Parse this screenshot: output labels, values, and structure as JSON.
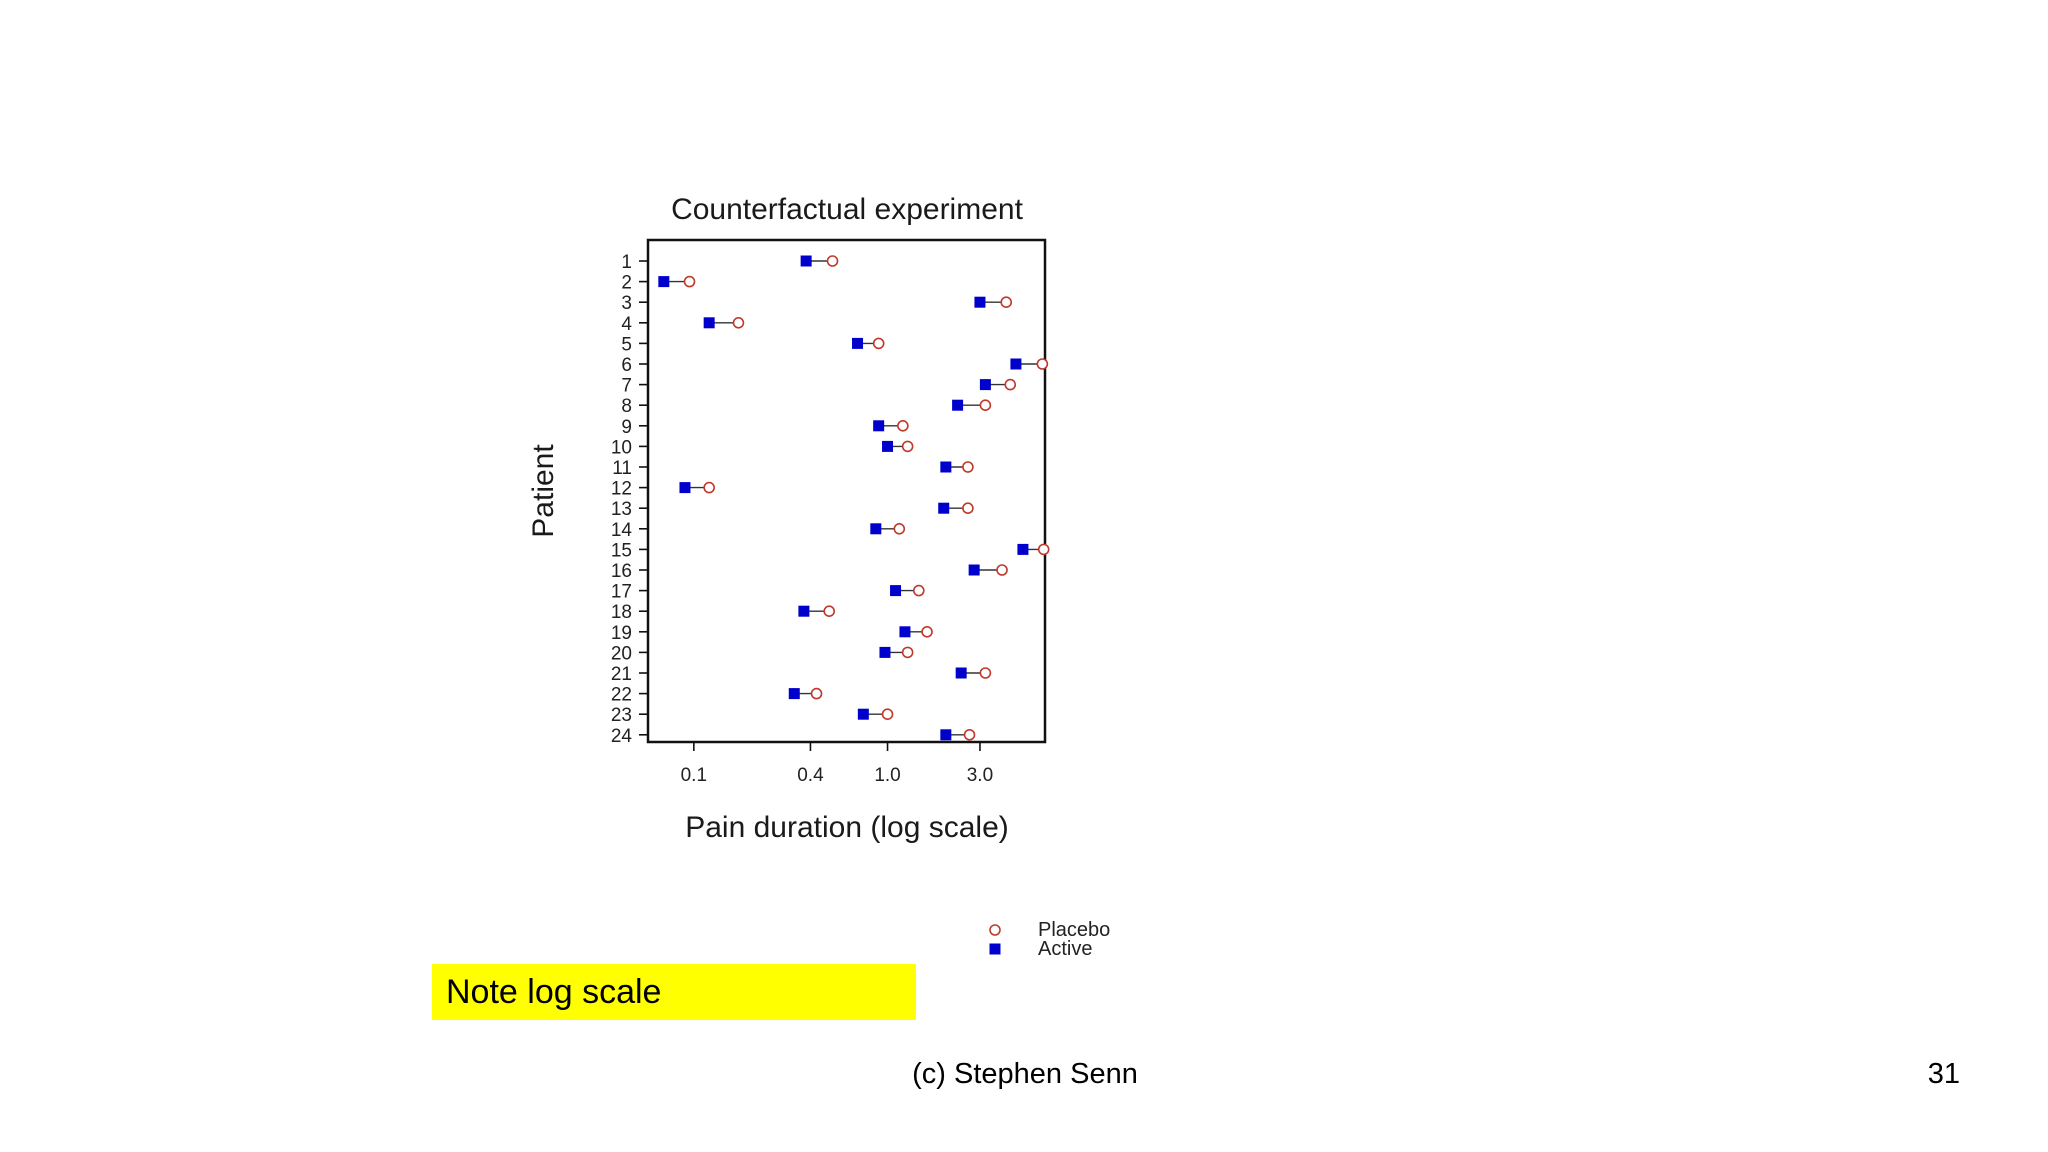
{
  "chart_data": {
    "type": "scatter",
    "title": "Counterfactual experiment",
    "xlabel": "Pain duration (log scale)",
    "ylabel": "Patient",
    "x_scale": "log",
    "xlim": [
      0.058,
      6.5
    ],
    "x_ticks": [
      0.1,
      0.4,
      1.0,
      3.0
    ],
    "x_tick_labels": [
      "0.1",
      "0.4",
      "1.0",
      "3.0"
    ],
    "categories": [
      "1",
      "2",
      "3",
      "4",
      "5",
      "6",
      "7",
      "8",
      "9",
      "10",
      "11",
      "12",
      "13",
      "14",
      "15",
      "16",
      "17",
      "18",
      "19",
      "20",
      "21",
      "22",
      "23",
      "24"
    ],
    "series": [
      {
        "name": "Placebo",
        "marker": "open-circle",
        "color": "#c0392b",
        "values": [
          0.52,
          0.095,
          4.1,
          0.17,
          0.9,
          6.3,
          4.3,
          3.2,
          1.2,
          1.27,
          2.6,
          0.12,
          2.6,
          1.15,
          6.4,
          3.9,
          1.45,
          0.5,
          1.6,
          1.27,
          3.2,
          0.43,
          1.0,
          2.65
        ]
      },
      {
        "name": "Active",
        "marker": "filled-square",
        "color": "#0000cc",
        "values": [
          0.38,
          0.07,
          3.0,
          0.12,
          0.7,
          4.6,
          3.2,
          2.3,
          0.9,
          1.0,
          2.0,
          0.09,
          1.95,
          0.87,
          5.0,
          2.8,
          1.1,
          0.37,
          1.23,
          0.97,
          2.4,
          0.33,
          0.75,
          2.0
        ]
      }
    ],
    "legend": {
      "position": "bottom-right",
      "items": [
        {
          "label": "Placebo",
          "marker": "open-circle",
          "color": "#c0392b"
        },
        {
          "label": "Active",
          "marker": "filled-square",
          "color": "#0000cc"
        }
      ]
    },
    "grid": false
  },
  "note": "Note log scale",
  "footer": "(c) Stephen Senn",
  "slide_number": "31",
  "colors": {
    "note_background": "#ffff00",
    "placebo": "#c0392b",
    "active": "#0000cc"
  }
}
